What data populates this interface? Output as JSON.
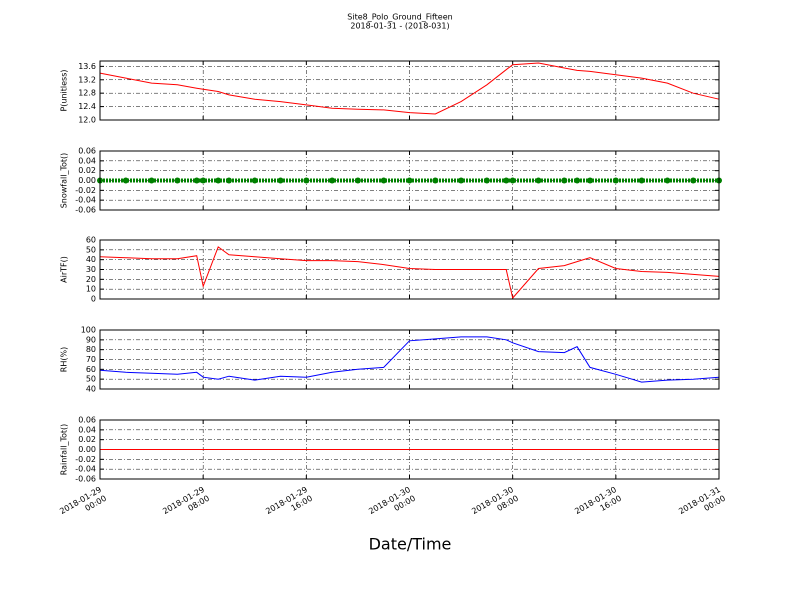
{
  "title": "Site8_Polo_Ground_Fifteen",
  "subtitle": "2018-01-31 - (2018-031)",
  "x_label": "Date/Time",
  "chart_data": [
    {
      "type": "line",
      "ylabel": "P(unitless)",
      "color": "#ff0000",
      "x": [
        "2018-01-29 00:00",
        "2018-01-29 02:00",
        "2018-01-29 04:00",
        "2018-01-29 06:00",
        "2018-01-29 07:30",
        "2018-01-29 08:00",
        "2018-01-29 09:10",
        "2018-01-29 10:00",
        "2018-01-29 12:00",
        "2018-01-29 14:00",
        "2018-01-29 16:00",
        "2018-01-29 18:00",
        "2018-01-29 20:00",
        "2018-01-29 22:00",
        "2018-01-30 00:00",
        "2018-01-30 02:00",
        "2018-01-30 04:00",
        "2018-01-30 06:00",
        "2018-01-30 07:30",
        "2018-01-30 08:00",
        "2018-01-30 10:00",
        "2018-01-30 12:00",
        "2018-01-30 13:00",
        "2018-01-30 14:00",
        "2018-01-30 16:00",
        "2018-01-30 18:00",
        "2018-01-30 20:00",
        "2018-01-30 22:00",
        "2018-01-31 00:00"
      ],
      "values": [
        13.4,
        13.25,
        13.1,
        13.05,
        12.95,
        12.92,
        12.85,
        12.75,
        12.62,
        12.55,
        12.45,
        12.35,
        12.32,
        12.3,
        12.22,
        12.18,
        12.55,
        13.05,
        13.5,
        13.65,
        13.7,
        13.55,
        13.48,
        13.45,
        13.35,
        13.25,
        13.1,
        12.8,
        12.62
      ],
      "ylim": [
        12.0,
        13.76
      ],
      "yticks": [
        {
          "value": 12,
          "label": "12.0"
        },
        12.4,
        12.8,
        13.2,
        13.6
      ]
    },
    {
      "type": "line",
      "ylabel": "Snowfall_Tot()",
      "color": "#008000",
      "marker": true,
      "x": [
        "2018-01-29 00:00",
        "2018-01-29 02:00",
        "2018-01-29 04:00",
        "2018-01-29 06:00",
        "2018-01-29 07:30",
        "2018-01-29 08:00",
        "2018-01-29 09:10",
        "2018-01-29 10:00",
        "2018-01-29 12:00",
        "2018-01-29 14:00",
        "2018-01-29 16:00",
        "2018-01-29 18:00",
        "2018-01-29 20:00",
        "2018-01-29 22:00",
        "2018-01-30 00:00",
        "2018-01-30 02:00",
        "2018-01-30 04:00",
        "2018-01-30 06:00",
        "2018-01-30 07:30",
        "2018-01-30 08:00",
        "2018-01-30 10:00",
        "2018-01-30 12:00",
        "2018-01-30 13:00",
        "2018-01-30 14:00",
        "2018-01-30 16:00",
        "2018-01-30 18:00",
        "2018-01-30 20:00",
        "2018-01-30 22:00",
        "2018-01-31 00:00"
      ],
      "values": [
        0,
        0,
        0,
        0,
        0,
        0,
        0,
        0,
        0,
        0,
        0,
        0,
        0,
        0,
        0,
        0,
        0,
        0,
        0,
        0,
        0,
        0,
        0,
        0,
        0,
        0,
        0,
        0,
        0
      ],
      "ylim": [
        -0.06,
        0.06
      ],
      "yticks": [
        -0.06,
        -0.04,
        -0.02,
        {
          "value": 0,
          "label": "0.00"
        },
        0.02,
        0.04,
        0.06
      ]
    },
    {
      "type": "line",
      "ylabel": "AirTF()",
      "color": "#ff0000",
      "x": [
        "2018-01-29 00:00",
        "2018-01-29 02:00",
        "2018-01-29 04:00",
        "2018-01-29 06:00",
        "2018-01-29 07:30",
        "2018-01-29 08:00",
        "2018-01-29 09:10",
        "2018-01-29 10:00",
        "2018-01-29 12:00",
        "2018-01-29 14:00",
        "2018-01-29 16:00",
        "2018-01-29 18:00",
        "2018-01-29 20:00",
        "2018-01-29 22:00",
        "2018-01-30 00:00",
        "2018-01-30 02:00",
        "2018-01-30 04:00",
        "2018-01-30 06:00",
        "2018-01-30 07:30",
        "2018-01-30 08:00",
        "2018-01-30 10:00",
        "2018-01-30 12:00",
        "2018-01-30 13:00",
        "2018-01-30 14:00",
        "2018-01-30 16:00",
        "2018-01-30 18:00",
        "2018-01-30 20:00",
        "2018-01-30 22:00",
        "2018-01-31 00:00"
      ],
      "values": [
        43,
        42,
        41,
        41,
        44,
        13,
        53,
        45,
        43,
        41,
        39,
        39,
        38,
        35,
        31,
        30,
        30,
        30,
        30,
        1,
        31,
        34,
        38,
        42,
        31,
        28,
        27,
        25,
        23
      ],
      "ylim": [
        0,
        60
      ],
      "yticks": [
        0,
        10,
        20,
        30,
        40,
        50,
        60
      ]
    },
    {
      "type": "line",
      "ylabel": "RH(%)",
      "color": "#0000ff",
      "x": [
        "2018-01-29 00:00",
        "2018-01-29 02:00",
        "2018-01-29 04:00",
        "2018-01-29 06:00",
        "2018-01-29 07:30",
        "2018-01-29 08:00",
        "2018-01-29 09:10",
        "2018-01-29 10:00",
        "2018-01-29 12:00",
        "2018-01-29 14:00",
        "2018-01-29 16:00",
        "2018-01-29 18:00",
        "2018-01-29 20:00",
        "2018-01-29 22:00",
        "2018-01-30 00:00",
        "2018-01-30 02:00",
        "2018-01-30 04:00",
        "2018-01-30 06:00",
        "2018-01-30 07:30",
        "2018-01-30 08:00",
        "2018-01-30 10:00",
        "2018-01-30 12:00",
        "2018-01-30 13:00",
        "2018-01-30 14:00",
        "2018-01-30 16:00",
        "2018-01-30 18:00",
        "2018-01-30 20:00",
        "2018-01-30 22:00",
        "2018-01-31 00:00"
      ],
      "values": [
        59,
        57,
        56,
        55,
        57,
        52,
        50,
        53,
        49,
        53,
        52,
        57,
        60,
        62,
        89,
        91,
        93,
        93,
        90,
        87,
        78,
        77,
        83,
        62,
        55,
        47,
        49,
        50,
        52
      ],
      "ylim": [
        40,
        100
      ],
      "yticks": [
        40,
        50,
        60,
        70,
        80,
        90,
        100
      ]
    },
    {
      "type": "line",
      "ylabel": "Rainfall_Tot()",
      "color": "#ff0000",
      "x": [
        "2018-01-29 00:00",
        "2018-01-29 02:00",
        "2018-01-29 04:00",
        "2018-01-29 06:00",
        "2018-01-29 07:30",
        "2018-01-29 08:00",
        "2018-01-29 09:10",
        "2018-01-29 10:00",
        "2018-01-29 12:00",
        "2018-01-29 14:00",
        "2018-01-29 16:00",
        "2018-01-29 18:00",
        "2018-01-29 20:00",
        "2018-01-29 22:00",
        "2018-01-30 00:00",
        "2018-01-30 02:00",
        "2018-01-30 04:00",
        "2018-01-30 06:00",
        "2018-01-30 07:30",
        "2018-01-30 08:00",
        "2018-01-30 10:00",
        "2018-01-30 12:00",
        "2018-01-30 13:00",
        "2018-01-30 14:00",
        "2018-01-30 16:00",
        "2018-01-30 18:00",
        "2018-01-30 20:00",
        "2018-01-30 22:00",
        "2018-01-31 00:00"
      ],
      "values": [
        0,
        0,
        0,
        0,
        0,
        0,
        0,
        0,
        0,
        0,
        0,
        0,
        0,
        0,
        0,
        0,
        0,
        0,
        0,
        0,
        0,
        0,
        0,
        0,
        0,
        0,
        0,
        0,
        0
      ],
      "ylim": [
        -0.06,
        0.06
      ],
      "yticks": [
        -0.06,
        -0.04,
        -0.02,
        {
          "value": 0,
          "label": "0.00"
        },
        0.02,
        0.04,
        0.06
      ],
      "xlim": [
        "2018-01-29 00:00",
        "2018-01-31 00:00"
      ],
      "xticks": [
        {
          "value": "2018-01-29 00:00",
          "label": "2018-01-29\n00:00"
        },
        {
          "value": "2018-01-29 08:00",
          "label": "2018-01-29\n08:00"
        },
        {
          "value": "2018-01-29 16:00",
          "label": "2018-01-29\n16:00"
        },
        {
          "value": "2018-01-30 00:00",
          "label": "2018-01-30\n00:00"
        },
        {
          "value": "2018-01-30 08:00",
          "label": "2018-01-30\n08:00"
        },
        {
          "value": "2018-01-30 16:00",
          "label": "2018-01-30\n16:00"
        },
        {
          "value": "2018-01-31 00:00",
          "label": "2018-01-31\n00:00"
        }
      ]
    }
  ]
}
